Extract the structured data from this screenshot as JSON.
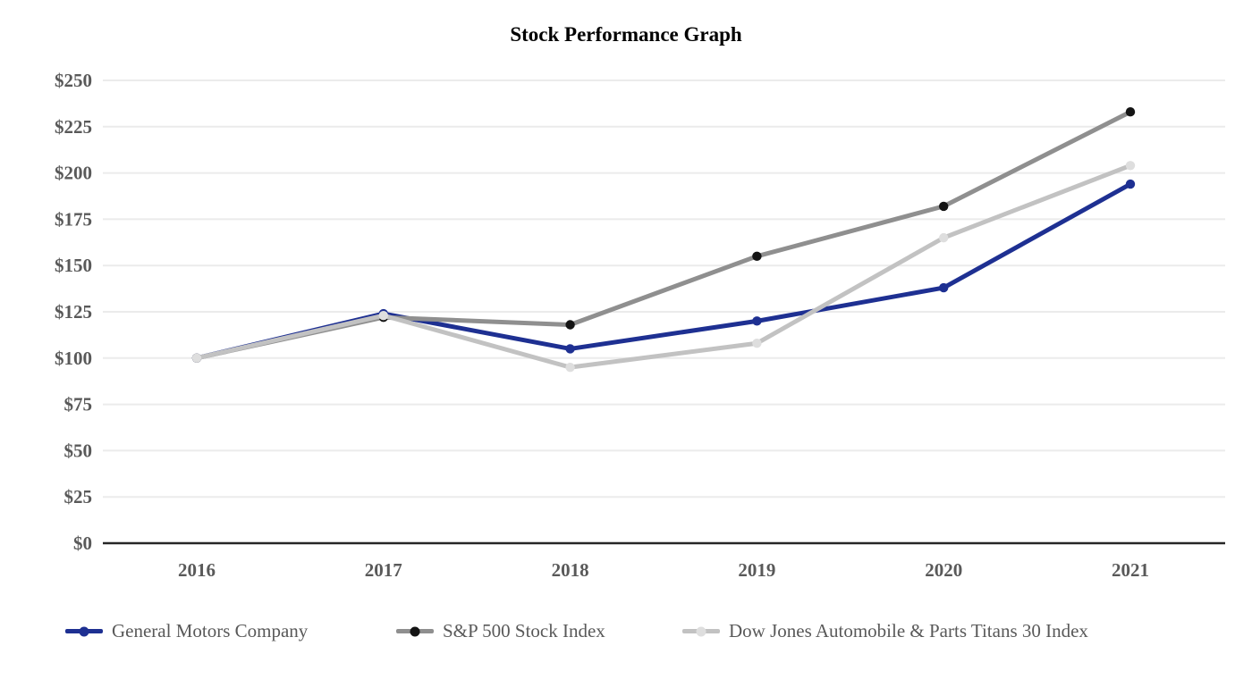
{
  "chart": {
    "title": "Stock Performance Graph"
  },
  "chart_data": {
    "type": "line",
    "title": "Stock Performance Graph",
    "categories": [
      "2016",
      "2017",
      "2018",
      "2019",
      "2020",
      "2021"
    ],
    "series": [
      {
        "name": "General Motors Company",
        "color": "#1e3092",
        "marker_color": "#1e3092",
        "values": [
          100,
          124,
          105,
          120,
          138,
          194
        ]
      },
      {
        "name": "S&P 500 Stock Index",
        "color": "#8f8f8f",
        "marker_color": "#141414",
        "values": [
          100,
          122,
          118,
          155,
          182,
          233
        ]
      },
      {
        "name": "Dow Jones Automobile & Parts Titans 30 Index",
        "color": "#c2c2c2",
        "marker_color": "#dedede",
        "values": [
          100,
          123,
          95,
          108,
          165,
          204
        ]
      }
    ],
    "xlabel": "",
    "ylabel": "",
    "ylim": [
      0,
      250
    ],
    "ytick_step": 25,
    "ytick_labels": [
      "$0",
      "$25",
      "$50",
      "$75",
      "$100",
      "$125",
      "$150",
      "$175",
      "$200",
      "$225",
      "$250"
    ],
    "grid": "horizontal-only",
    "axis_color": "#262626",
    "gridline_color": "#ebebeb",
    "label_color": "#595959",
    "legend_position": "bottom"
  }
}
